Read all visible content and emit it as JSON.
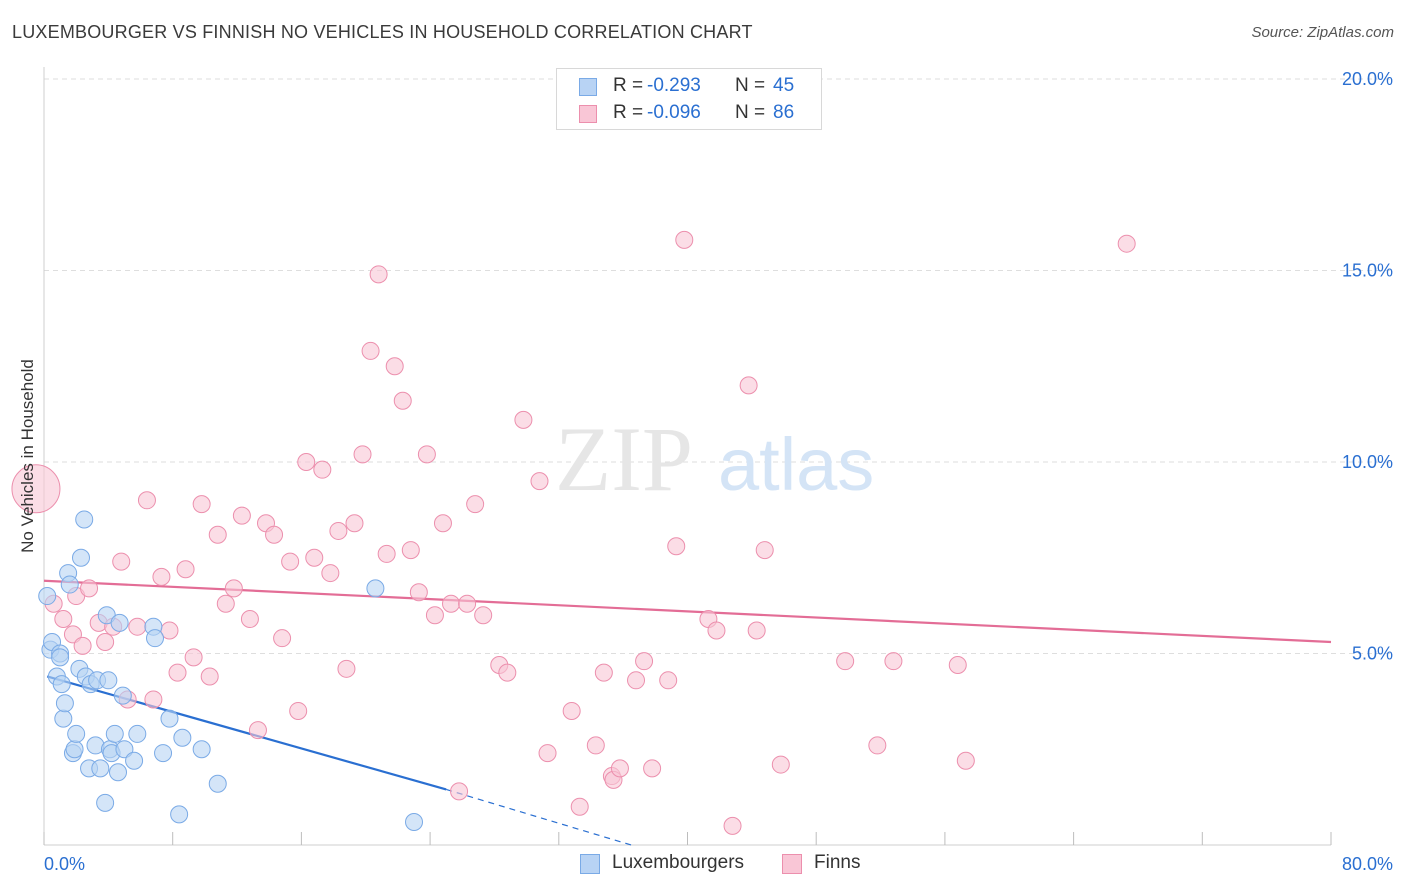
{
  "title": "LUXEMBOURGER VS FINNISH NO VEHICLES IN HOUSEHOLD CORRELATION CHART",
  "source": "Source: ZipAtlas.com",
  "watermark": {
    "zip": "ZIP",
    "atlas": "atlas"
  },
  "stats": [
    {
      "r_label": "R =",
      "r_value": "-0.293",
      "n_label": "N =",
      "n_value": "45",
      "color": "#b8d3f4",
      "border": "#7aaae6"
    },
    {
      "r_label": "R =",
      "r_value": "-0.096",
      "n_label": "N =",
      "n_value": "86",
      "color": "#f9c6d6",
      "border": "#ec8fad"
    }
  ],
  "legend": [
    {
      "label": "Luxembourgers",
      "color": "#b8d3f4",
      "border": "#7aaae6"
    },
    {
      "label": "Finns",
      "color": "#f9c6d6",
      "border": "#ec8fad"
    }
  ],
  "chart_data": {
    "type": "scatter",
    "title": "LUXEMBOURGER VS FINNISH NO VEHICLES IN HOUSEHOLD CORRELATION CHART",
    "xlabel": "",
    "ylabel": "No Vehicles in Household",
    "xlim": [
      0,
      80
    ],
    "ylim": [
      0,
      20
    ],
    "x_tick_labels": [
      "0.0%",
      "80.0%"
    ],
    "y_ticks": [
      5,
      10,
      15,
      20
    ],
    "y_tick_labels": [
      "5.0%",
      "10.0%",
      "15.0%",
      "20.0%"
    ],
    "grid": true,
    "series": [
      {
        "name": "Luxembourgers",
        "color": "#7aaae6",
        "fill": "#b8d3f4",
        "trend": {
          "color": "#2a6fd1",
          "x_start": 0.2,
          "y_start": 4.4,
          "x_end": 25,
          "y_end": 1.45,
          "dash_end_x": 36.5,
          "dash_end_y": 0.0
        },
        "points": [
          [
            0.2,
            6.5
          ],
          [
            0.4,
            5.1
          ],
          [
            0.5,
            5.3
          ],
          [
            0.8,
            4.4
          ],
          [
            1.0,
            5.0
          ],
          [
            1.1,
            4.2
          ],
          [
            1.2,
            3.3
          ],
          [
            1.3,
            3.7
          ],
          [
            1.5,
            7.1
          ],
          [
            1.6,
            6.8
          ],
          [
            1.8,
            2.4
          ],
          [
            1.9,
            2.5
          ],
          [
            2.0,
            2.9
          ],
          [
            2.2,
            4.6
          ],
          [
            2.3,
            7.5
          ],
          [
            2.5,
            8.5
          ],
          [
            2.6,
            4.4
          ],
          [
            2.8,
            2.0
          ],
          [
            2.9,
            4.2
          ],
          [
            3.2,
            2.6
          ],
          [
            3.3,
            4.3
          ],
          [
            3.5,
            2.0
          ],
          [
            3.8,
            1.1
          ],
          [
            3.9,
            6.0
          ],
          [
            4.0,
            4.3
          ],
          [
            4.1,
            2.5
          ],
          [
            4.2,
            2.4
          ],
          [
            4.4,
            2.9
          ],
          [
            4.6,
            1.9
          ],
          [
            4.7,
            5.8
          ],
          [
            4.9,
            3.9
          ],
          [
            5.0,
            2.5
          ],
          [
            5.6,
            2.2
          ],
          [
            5.8,
            2.9
          ],
          [
            6.8,
            5.7
          ],
          [
            6.9,
            5.4
          ],
          [
            7.4,
            2.4
          ],
          [
            7.8,
            3.3
          ],
          [
            8.4,
            0.8
          ],
          [
            8.6,
            2.8
          ],
          [
            9.8,
            2.5
          ],
          [
            10.8,
            1.6
          ],
          [
            20.6,
            6.7
          ],
          [
            23.0,
            0.6
          ],
          [
            1.0,
            4.9
          ]
        ]
      },
      {
        "name": "Finns",
        "color": "#ec8fad",
        "fill": "#f9c6d6",
        "trend": {
          "color": "#e36d96",
          "x_start": 0,
          "y_start": 6.9,
          "x_end": 80,
          "y_end": 5.3
        },
        "large_point": [
          -0.5,
          9.3
        ],
        "points": [
          [
            0.6,
            6.3
          ],
          [
            1.2,
            5.9
          ],
          [
            1.8,
            5.5
          ],
          [
            2.0,
            6.5
          ],
          [
            2.4,
            5.2
          ],
          [
            2.8,
            6.7
          ],
          [
            3.4,
            5.8
          ],
          [
            3.8,
            5.3
          ],
          [
            4.3,
            5.7
          ],
          [
            4.8,
            7.4
          ],
          [
            5.2,
            3.8
          ],
          [
            5.8,
            5.7
          ],
          [
            6.4,
            9.0
          ],
          [
            6.8,
            3.8
          ],
          [
            7.3,
            7.0
          ],
          [
            7.8,
            5.6
          ],
          [
            8.3,
            4.5
          ],
          [
            8.8,
            7.2
          ],
          [
            9.3,
            4.9
          ],
          [
            9.8,
            8.9
          ],
          [
            10.3,
            4.4
          ],
          [
            10.8,
            8.1
          ],
          [
            11.3,
            6.3
          ],
          [
            11.8,
            6.7
          ],
          [
            12.3,
            8.6
          ],
          [
            12.8,
            5.9
          ],
          [
            13.3,
            3.0
          ],
          [
            13.8,
            8.4
          ],
          [
            14.3,
            8.1
          ],
          [
            14.8,
            5.4
          ],
          [
            15.3,
            7.4
          ],
          [
            15.8,
            3.5
          ],
          [
            16.3,
            10.0
          ],
          [
            16.8,
            7.5
          ],
          [
            17.3,
            9.8
          ],
          [
            17.8,
            7.1
          ],
          [
            18.3,
            8.2
          ],
          [
            18.8,
            4.6
          ],
          [
            19.3,
            8.4
          ],
          [
            19.8,
            10.2
          ],
          [
            20.3,
            12.9
          ],
          [
            20.8,
            14.9
          ],
          [
            21.3,
            7.6
          ],
          [
            21.8,
            12.5
          ],
          [
            22.3,
            11.6
          ],
          [
            22.8,
            7.7
          ],
          [
            23.3,
            6.6
          ],
          [
            23.8,
            10.2
          ],
          [
            24.3,
            6.0
          ],
          [
            24.8,
            8.4
          ],
          [
            25.3,
            6.3
          ],
          [
            25.8,
            1.4
          ],
          [
            26.3,
            6.3
          ],
          [
            26.8,
            8.9
          ],
          [
            27.3,
            6.0
          ],
          [
            28.3,
            4.7
          ],
          [
            28.8,
            4.5
          ],
          [
            29.8,
            11.1
          ],
          [
            30.8,
            9.5
          ],
          [
            31.3,
            2.4
          ],
          [
            32.8,
            3.5
          ],
          [
            33.3,
            1.0
          ],
          [
            34.3,
            2.6
          ],
          [
            34.8,
            4.5
          ],
          [
            35.3,
            1.8
          ],
          [
            35.4,
            1.7
          ],
          [
            35.8,
            2.0
          ],
          [
            36.8,
            4.3
          ],
          [
            37.3,
            4.8
          ],
          [
            37.8,
            2.0
          ],
          [
            38.8,
            4.3
          ],
          [
            39.3,
            7.8
          ],
          [
            39.8,
            15.8
          ],
          [
            41.3,
            5.9
          ],
          [
            41.8,
            5.6
          ],
          [
            42.8,
            0.5
          ],
          [
            43.8,
            12.0
          ],
          [
            44.3,
            5.6
          ],
          [
            44.8,
            7.7
          ],
          [
            45.8,
            2.1
          ],
          [
            49.8,
            4.8
          ],
          [
            51.8,
            2.6
          ],
          [
            52.8,
            4.8
          ],
          [
            56.8,
            4.7
          ],
          [
            57.3,
            2.2
          ],
          [
            67.3,
            15.7
          ]
        ]
      }
    ]
  }
}
